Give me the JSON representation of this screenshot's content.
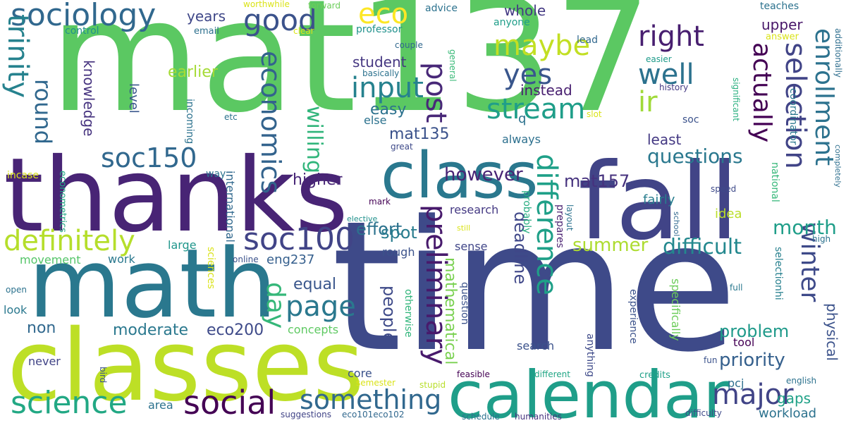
{
  "palette": {
    "green": "#5bc862",
    "indigo": "#443983",
    "purple": "#471164",
    "teal": "#2a788e",
    "lime": "#c0df25",
    "blue_teal": "#31678e",
    "sea_green": "#1f9e89",
    "dark_purple": "#440154",
    "mint": "#7ad151",
    "aqua": "#21918c"
  },
  "words": [
    {
      "text": "mat137",
      "color": "#5bc862"
    },
    {
      "text": "time",
      "color": "#3e4a89"
    },
    {
      "text": "thanks",
      "color": "#482475"
    },
    {
      "text": "math",
      "color": "#2a788e"
    },
    {
      "text": "classes",
      "color": "#bddf26"
    },
    {
      "text": "fall",
      "color": "#414487"
    },
    {
      "text": "class",
      "color": "#2a788e"
    },
    {
      "text": "calendar",
      "color": "#1f9e89"
    },
    {
      "text": "sociology",
      "color": "#31688e"
    },
    {
      "text": "science",
      "color": "#22a884"
    },
    {
      "text": "social",
      "color": "#440154"
    },
    {
      "text": "definitely",
      "color": "#b5de2b"
    },
    {
      "text": "soc100",
      "color": "#414487"
    },
    {
      "text": "soc150",
      "color": "#31688e"
    },
    {
      "text": "page",
      "color": "#2a788e"
    },
    {
      "text": "something",
      "color": "#31688e"
    },
    {
      "text": "major",
      "color": "#414487"
    },
    {
      "text": "good",
      "color": "#3b528b"
    },
    {
      "text": "eco",
      "color": "#fde725"
    },
    {
      "text": "right",
      "color": "#481f70"
    },
    {
      "text": "maybe",
      "color": "#c2df23"
    },
    {
      "text": "input",
      "color": "#26828e"
    },
    {
      "text": "yes",
      "color": "#39568c"
    },
    {
      "text": "well",
      "color": "#2c728e"
    },
    {
      "text": "stream",
      "color": "#1f9e89"
    },
    {
      "text": "ir",
      "color": "#a0da39"
    },
    {
      "text": "trinity",
      "color": "#26828e"
    },
    {
      "text": "round",
      "color": "#31688e"
    },
    {
      "text": "economics",
      "color": "#33638d"
    },
    {
      "text": "post",
      "color": "#482878"
    },
    {
      "text": "selection",
      "color": "#414487"
    },
    {
      "text": "actually",
      "color": "#440154"
    },
    {
      "text": "enrollment",
      "color": "#2c728e"
    },
    {
      "text": "winter",
      "color": "#3e4a89"
    },
    {
      "text": "difference",
      "color": "#1fa088"
    },
    {
      "text": "preliminary",
      "color": "#481a6c"
    },
    {
      "text": "questions",
      "color": "#2a788e"
    },
    {
      "text": "difficult",
      "color": "#23888e"
    },
    {
      "text": "summer",
      "color": "#addc30"
    },
    {
      "text": "month",
      "color": "#1f9e89"
    },
    {
      "text": "willing",
      "color": "#31b57b"
    },
    {
      "text": "day",
      "color": "#35b779"
    },
    {
      "text": "however",
      "color": "#482475"
    },
    {
      "text": "mat157",
      "color": "#46327e"
    },
    {
      "text": "priority",
      "color": "#35608d"
    },
    {
      "text": "problem",
      "color": "#1f9a8a"
    },
    {
      "text": "people",
      "color": "#3e4a89"
    },
    {
      "text": "effort",
      "color": "#2c728e"
    },
    {
      "text": "spot",
      "color": "#287c8e"
    },
    {
      "text": "deadline",
      "color": "#3f4788"
    },
    {
      "text": "mathematical",
      "color": "#7ad151"
    },
    {
      "text": "moderate",
      "color": "#2a788e"
    },
    {
      "text": "eco200",
      "color": "#3e4a89"
    },
    {
      "text": "equal",
      "color": "#39568c"
    },
    {
      "text": "non",
      "color": "#31688e"
    },
    {
      "text": "eng237",
      "color": "#355f8d"
    },
    {
      "text": "knowledge",
      "color": "#46337f"
    },
    {
      "text": "earlier",
      "color": "#a5db36"
    },
    {
      "text": "years",
      "color": "#3f4788"
    },
    {
      "text": "higher",
      "color": "#482677"
    },
    {
      "text": "easy",
      "color": "#2c728e"
    },
    {
      "text": "mat135",
      "color": "#3b528b"
    },
    {
      "text": "student",
      "color": "#453781"
    },
    {
      "text": "instead",
      "color": "#481f70"
    },
    {
      "text": "whole",
      "color": "#443983"
    },
    {
      "text": "upper",
      "color": "#481769"
    },
    {
      "text": "least",
      "color": "#443983"
    },
    {
      "text": "gaps",
      "color": "#1fa187"
    },
    {
      "text": "workload",
      "color": "#2c728e"
    },
    {
      "text": "physical",
      "color": "#3b528b"
    },
    {
      "text": "level",
      "color": "#39568c"
    },
    {
      "text": "research",
      "color": "#443983"
    },
    {
      "text": "else",
      "color": "#2c728e"
    },
    {
      "text": "always",
      "color": "#2d708e"
    },
    {
      "text": "fairly",
      "color": "#287d8e"
    },
    {
      "text": "idea",
      "color": "#bade28"
    },
    {
      "text": "search",
      "color": "#3b528b"
    },
    {
      "text": "concepts",
      "color": "#5ec962"
    },
    {
      "text": "pcj",
      "color": "#2e6f8e"
    },
    {
      "text": "core",
      "color": "#3b528b"
    },
    {
      "text": "tool",
      "color": "#440154"
    },
    {
      "text": "never",
      "color": "#414487"
    },
    {
      "text": "area",
      "color": "#2c728e"
    },
    {
      "text": "look",
      "color": "#2a788e"
    },
    {
      "text": "sense",
      "color": "#404688"
    },
    {
      "text": "rough",
      "color": "#3b528b"
    },
    {
      "text": "work",
      "color": "#2a788e"
    },
    {
      "text": "large",
      "color": "#1f968b"
    },
    {
      "text": "movement",
      "color": "#54c568"
    },
    {
      "text": "international",
      "color": "#31688e"
    },
    {
      "text": "professor",
      "color": "#21918c"
    },
    {
      "text": "advice",
      "color": "#2c728e"
    },
    {
      "text": "anyone",
      "color": "#1f9e89"
    },
    {
      "text": "control",
      "color": "#21918c"
    },
    {
      "text": "email",
      "color": "#2d708e"
    },
    {
      "text": "couple",
      "color": "#31688e"
    },
    {
      "text": "basically",
      "color": "#2c728e"
    },
    {
      "text": "lead",
      "color": "#31688e"
    },
    {
      "text": "teaches",
      "color": "#2c728e"
    },
    {
      "text": "answer",
      "color": "#dae319"
    },
    {
      "text": "easier",
      "color": "#1e9b8a"
    },
    {
      "text": "history",
      "color": "#443983"
    },
    {
      "text": "soc",
      "color": "#3b528b"
    },
    {
      "text": "slot",
      "color": "#dae319"
    },
    {
      "text": "coordinator",
      "color": "#2a788e"
    },
    {
      "text": "national",
      "color": "#35b779"
    },
    {
      "text": "significant",
      "color": "#29af7f"
    },
    {
      "text": "additionally",
      "color": "#2e6e8e"
    },
    {
      "text": "completely",
      "color": "#2e6f8e"
    },
    {
      "text": "speed",
      "color": "#3e4a89"
    },
    {
      "text": "school",
      "color": "#31688e"
    },
    {
      "text": "high",
      "color": "#2c728e"
    },
    {
      "text": "selectionhi",
      "color": "#27808e"
    },
    {
      "text": "full",
      "color": "#2a788e"
    },
    {
      "text": "fun",
      "color": "#3b528b"
    },
    {
      "text": "english",
      "color": "#2c728e"
    },
    {
      "text": "difficulty",
      "color": "#3e4a89"
    },
    {
      "text": "credits",
      "color": "#1fa088"
    },
    {
      "text": "experience",
      "color": "#3b528b"
    },
    {
      "text": "specifically",
      "color": "#6ccd5a"
    },
    {
      "text": "anything",
      "color": "#3e4a89"
    },
    {
      "text": "different",
      "color": "#21a685"
    },
    {
      "text": "feasible",
      "color": "#440154"
    },
    {
      "text": "schedule",
      "color": "#2c728e"
    },
    {
      "text": "humanities",
      "color": "#46337f"
    },
    {
      "text": "question",
      "color": "#3b528b"
    },
    {
      "text": "otherwise",
      "color": "#31b57b"
    },
    {
      "text": "prepares",
      "color": "#481f70"
    },
    {
      "text": "layout",
      "color": "#2c728e"
    },
    {
      "text": "probably",
      "color": "#27ad81"
    },
    {
      "text": "still",
      "color": "#dae319"
    },
    {
      "text": "elective",
      "color": "#21918c"
    },
    {
      "text": "general",
      "color": "#38b977"
    },
    {
      "text": "mark",
      "color": "#440154"
    },
    {
      "text": "great",
      "color": "#3e4a89"
    },
    {
      "text": "stupid",
      "color": "#b8de29"
    },
    {
      "text": "semester",
      "color": "#dae319"
    },
    {
      "text": "suggestions",
      "color": "#414487"
    },
    {
      "text": "eco101eco102",
      "color": "#31688e"
    },
    {
      "text": "online",
      "color": "#3b528b"
    },
    {
      "text": "etc",
      "color": "#2c728e"
    },
    {
      "text": "way",
      "color": "#2c728e"
    },
    {
      "text": "incoming",
      "color": "#2c728e"
    },
    {
      "text": "incase",
      "color": "#dae319"
    },
    {
      "text": "econometrics",
      "color": "#22a884"
    },
    {
      "text": "open",
      "color": "#2c728e"
    },
    {
      "text": "sciences",
      "color": "#dae319"
    },
    {
      "text": "bird",
      "color": "#3b528b"
    },
    {
      "text": "worthwhile",
      "color": "#dae319"
    },
    {
      "text": "forward",
      "color": "#6ccd5a"
    },
    {
      "text": "clear",
      "color": "#dae319"
    },
    {
      "text": "q",
      "color": "#2c728e"
    }
  ]
}
